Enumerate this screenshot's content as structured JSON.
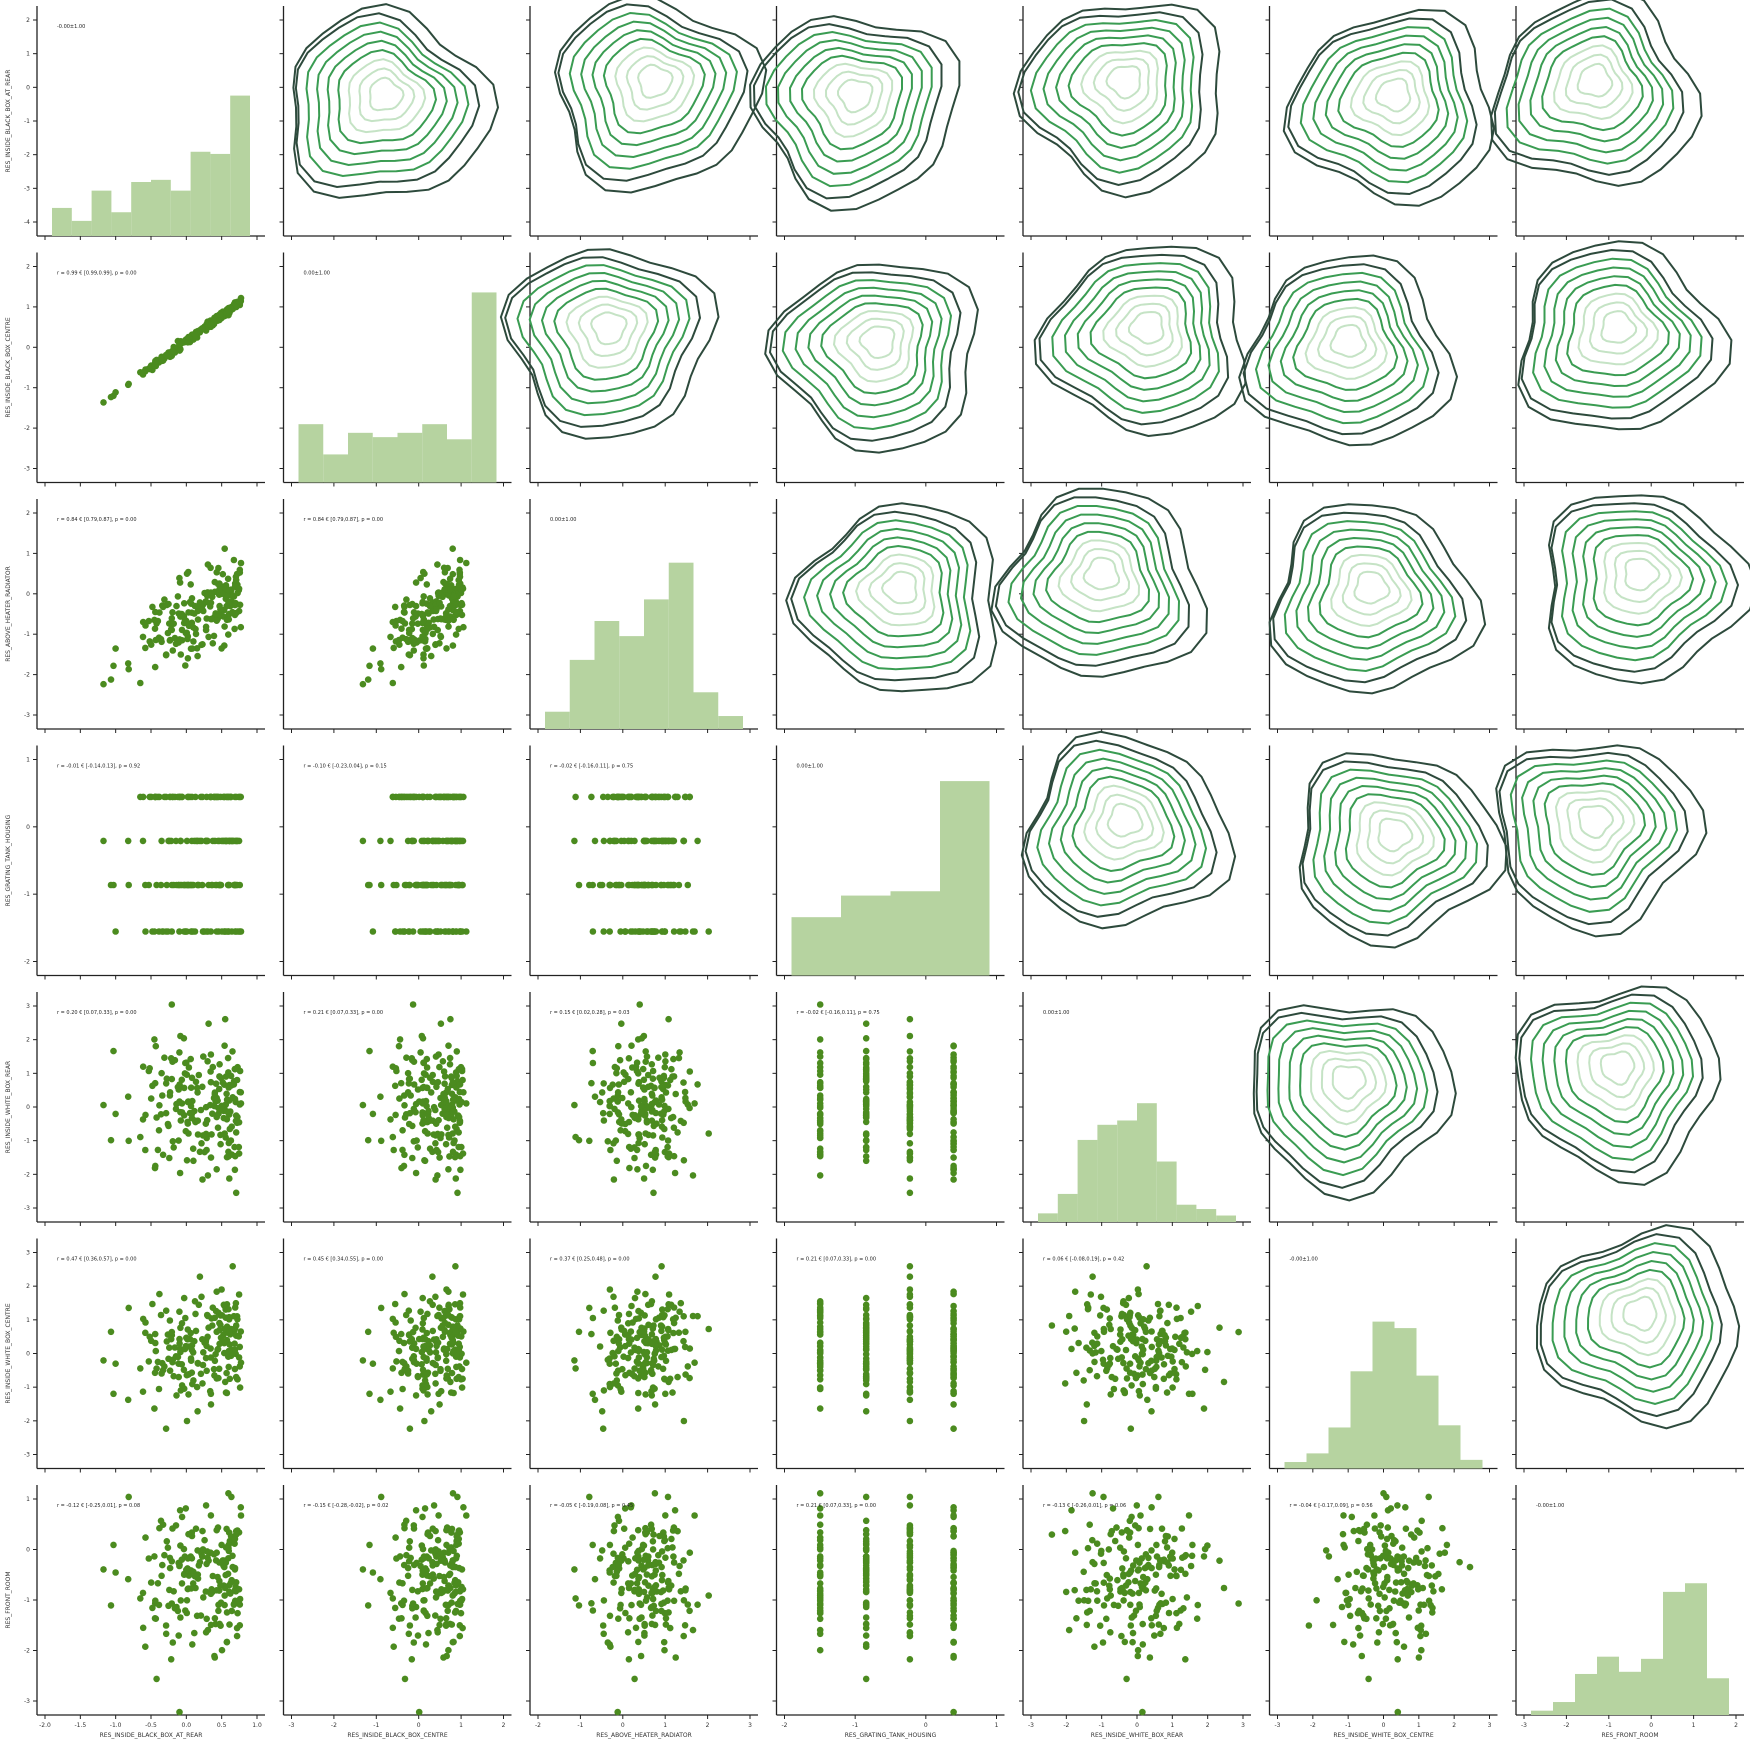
{
  "colors": {
    "point": "#4b8b1f",
    "hist_fill": "#b6d3a0",
    "kde_outer": "#2d4a3c",
    "kde_mid": "#3a9c52",
    "kde_inner": "#c5e3c5",
    "axis": "#222222"
  },
  "chart_data": {
    "type": "pairplot",
    "variables": [
      "RES_INSIDE_BLACK_BOX_AT_REAR",
      "RES_INSIDE_BLACK_BOX_CENTRE",
      "RES_ABOVE_HEATER_RADIATOR",
      "RES_GRATING_TANK_HOUSING",
      "RES_INSIDE_WHITE_BOX_REAR",
      "RES_INSIDE_WHITE_BOX_CENTRE",
      "RES_FRONT_ROOM"
    ],
    "x_tick_labels": [
      [
        "-2.0",
        "-1.5",
        "-1.0",
        "-0.5",
        "0.0",
        "0.5",
        "1.0"
      ],
      [
        "-3",
        "-2",
        "-1",
        "0",
        "1",
        "2"
      ],
      [
        "-2",
        "-1",
        "0",
        "1",
        "2",
        "3"
      ],
      [
        "-2",
        "-1",
        "0",
        "1"
      ],
      [
        "-3",
        "-2",
        "-1",
        "0",
        "1",
        "2",
        "3"
      ],
      [
        "-3",
        "-2",
        "-1",
        "0",
        "1",
        "2",
        "3"
      ],
      [
        "-3",
        "-2",
        "-1",
        "0",
        "1",
        "2"
      ]
    ],
    "y_tick_labels": [
      [
        "-4",
        "-3",
        "-2",
        "-1",
        "0",
        "1",
        "2"
      ],
      [
        "-3",
        "-2",
        "-1",
        "0",
        "1",
        "2"
      ],
      [
        "-3",
        "-2",
        "-1",
        "0",
        "1",
        "2"
      ],
      [
        "-2",
        "-1",
        "0",
        "1"
      ],
      [
        "-3",
        "-2",
        "-1",
        "0",
        "1",
        "2",
        "3"
      ],
      [
        "-3",
        "-2",
        "-1",
        "0",
        "1",
        "2",
        "3"
      ],
      [
        "-3",
        "-2",
        "-1",
        "0",
        "1"
      ]
    ],
    "diag_annotations": [
      "-0.00±1.00",
      "0.00±1.00",
      "0.00±1.00",
      "0.00±1.00",
      "0.00±1.00",
      "-0.00±1.00",
      "-0.00±1.00"
    ],
    "lower_annotations": [
      {
        "row": 1,
        "col": 0,
        "text": "r = 0.99 € [0.99,0.99], p = 0.00"
      },
      {
        "row": 2,
        "col": 0,
        "text": "r = 0.84 € [0.79,0.87], p = 0.00"
      },
      {
        "row": 2,
        "col": 1,
        "text": "r = 0.84 € [0.79,0.87], p = 0.00"
      },
      {
        "row": 3,
        "col": 0,
        "text": "r = -0.01 € [-0.14,0.13], p = 0.92"
      },
      {
        "row": 3,
        "col": 1,
        "text": "r = -0.10 € [-0.23,0.04], p = 0.15"
      },
      {
        "row": 3,
        "col": 2,
        "text": "r = -0.02 € [-0.16,0.11], p = 0.75"
      },
      {
        "row": 4,
        "col": 0,
        "text": "r = 0.20 € [0.07,0.33], p = 0.00"
      },
      {
        "row": 4,
        "col": 1,
        "text": "r = 0.21 € [0.07,0.33], p = 0.00"
      },
      {
        "row": 4,
        "col": 2,
        "text": "r = 0.15 € [0.02,0.28], p = 0.03"
      },
      {
        "row": 4,
        "col": 3,
        "text": "r = -0.02 € [-0.16,0.11], p = 0.75"
      },
      {
        "row": 5,
        "col": 0,
        "text": "r = 0.47 € [0.36,0.57], p = 0.00"
      },
      {
        "row": 5,
        "col": 1,
        "text": "r = 0.45 € [0.34,0.55], p = 0.00"
      },
      {
        "row": 5,
        "col": 2,
        "text": "r = 0.37 € [0.25,0.48], p = 0.00"
      },
      {
        "row": 5,
        "col": 3,
        "text": "r = 0.21 € [0.07,0.33], p = 0.00"
      },
      {
        "row": 5,
        "col": 4,
        "text": "r = 0.06 € [-0.08,0.19], p = 0.42"
      },
      {
        "row": 6,
        "col": 0,
        "text": "r = -0.12 € [-0.25,0.01], p = 0.08"
      },
      {
        "row": 6,
        "col": 1,
        "text": "r = -0.15 € [-0.28,-0.02], p = 0.02"
      },
      {
        "row": 6,
        "col": 2,
        "text": "r = -0.05 € [-0.19,0.08], p = 0.45"
      },
      {
        "row": 6,
        "col": 3,
        "text": "r = 0.21 € [0.07,0.33], p = 0.00"
      },
      {
        "row": 6,
        "col": 4,
        "text": "r = -0.13 € [-0.26,0.01], p = 0.06"
      },
      {
        "row": 6,
        "col": 5,
        "text": "r = -0.04 € [-0.17,0.09], p = 0.56"
      }
    ],
    "hist_heights": [
      [
        0.13,
        0.07,
        0.21,
        0.11,
        0.25,
        0.26,
        0.21,
        0.39,
        0.38,
        0.65
      ],
      [
        0.27,
        0.13,
        0.23,
        0.21,
        0.23,
        0.27,
        0.2,
        0.88
      ],
      [
        0.08,
        0.32,
        0.5,
        0.43,
        0.6,
        0.77,
        0.17,
        0.06
      ],
      [
        0.27,
        0.37,
        0.39,
        0.9
      ],
      [
        0.04,
        0.13,
        0.38,
        0.45,
        0.47,
        0.55,
        0.28,
        0.08,
        0.06,
        0.03
      ],
      [
        0.03,
        0.07,
        0.19,
        0.45,
        0.68,
        0.65,
        0.43,
        0.2,
        0.04
      ],
      [
        0.02,
        0.06,
        0.19,
        0.27,
        0.2,
        0.26,
        0.57,
        0.61,
        0.17
      ]
    ],
    "grating_levels": [
      -1.9,
      -0.95,
      -0.05,
      0.85
    ]
  }
}
